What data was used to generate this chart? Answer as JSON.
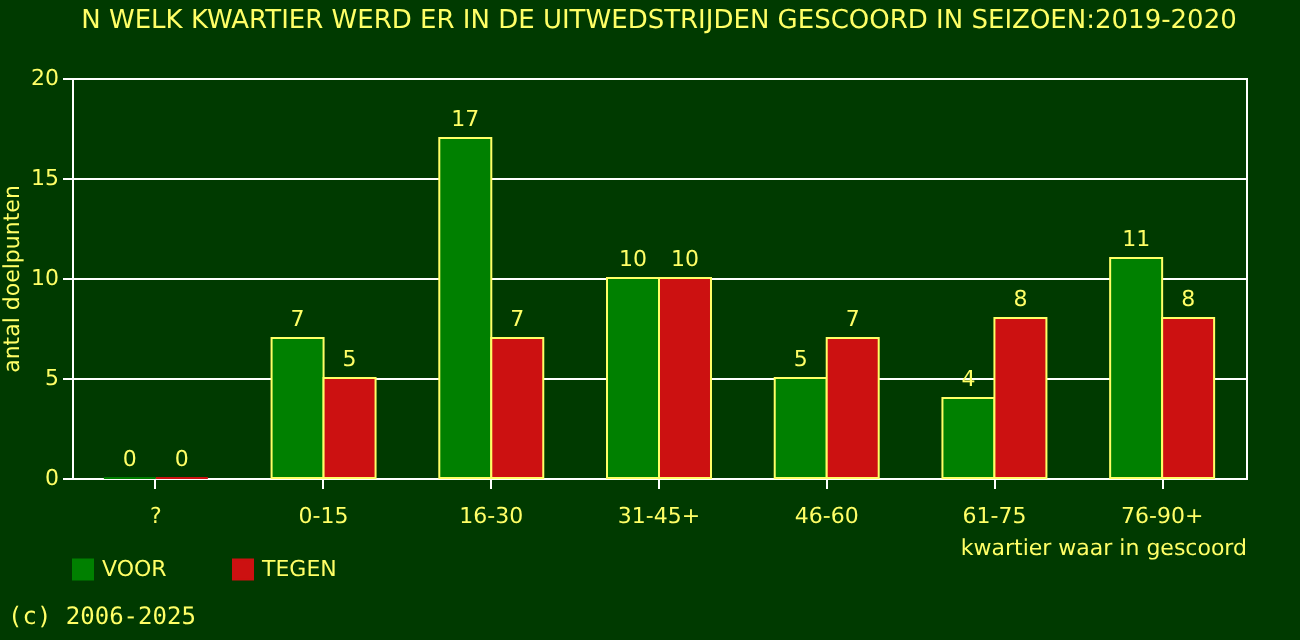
{
  "chart_data": {
    "type": "bar",
    "title": "N WELK KWARTIER WERD ER IN DE UITWEDSTRIJDEN GESCOORD IN SEIZOEN:2019-2020",
    "xlabel": "kwartier waar in gescoord",
    "ylabel": "antal doelpunten",
    "categories": [
      "?",
      "0-15",
      "16-30",
      "31-45+",
      "46-60",
      "61-75",
      "76-90+"
    ],
    "series": [
      {
        "name": "VOOR",
        "color": "#008000",
        "values": [
          0,
          7,
          17,
          10,
          5,
          4,
          11
        ]
      },
      {
        "name": "TEGEN",
        "color": "#cc1111",
        "values": [
          0,
          5,
          7,
          10,
          7,
          8,
          8
        ]
      }
    ],
    "ylim": [
      0,
      20
    ],
    "yticks": [
      0,
      5,
      10,
      15,
      20
    ],
    "grid": "y",
    "legend": "bottom",
    "data_labels": true,
    "annotations": [
      "(c) 2006-2025"
    ]
  }
}
